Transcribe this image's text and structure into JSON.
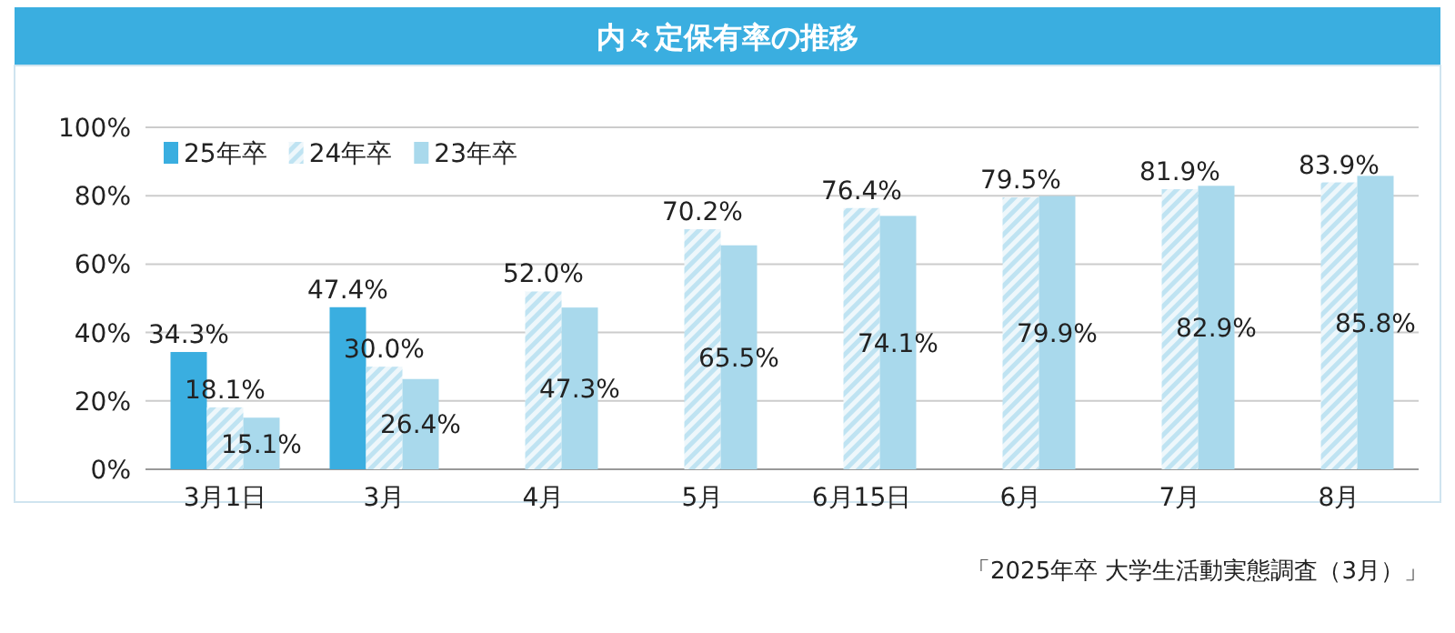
{
  "chart_data": {
    "type": "bar",
    "title": "内々定保有率の推移",
    "categories": [
      "3月1日",
      "3月",
      "4月",
      "5月",
      "6月15日",
      "6月",
      "7月",
      "8月"
    ],
    "series": [
      {
        "name": "25年卒",
        "color": "#3aaee0",
        "values": [
          34.3,
          47.4,
          null,
          null,
          null,
          null,
          null,
          null
        ],
        "value_labels": [
          "34.3%",
          "47.4%",
          null,
          null,
          null,
          null,
          null,
          null
        ]
      },
      {
        "name": "24年卒",
        "color": "#bfe3f2",
        "values": [
          18.1,
          30.0,
          52.0,
          70.2,
          76.4,
          79.5,
          81.9,
          83.9
        ],
        "value_labels": [
          "18.1%",
          "30.0%",
          "52.0%",
          "70.2%",
          "76.4%",
          "79.5%",
          "81.9%",
          "83.9%"
        ]
      },
      {
        "name": "23年卒",
        "color": "#a9d9ec",
        "values": [
          15.1,
          26.4,
          47.3,
          65.5,
          74.1,
          79.9,
          82.9,
          85.8
        ],
        "value_labels": [
          "15.1%",
          "26.4%",
          "47.3%",
          "65.5%",
          "74.1%",
          "79.9%",
          "82.9%",
          "85.8%"
        ]
      }
    ],
    "ylim": [
      0,
      100
    ],
    "yticks": [
      {
        "value": 0,
        "label": "0%"
      },
      {
        "value": 20,
        "label": "20%"
      },
      {
        "value": 40,
        "label": "40%"
      },
      {
        "value": 60,
        "label": "60%"
      },
      {
        "value": 80,
        "label": "80%"
      },
      {
        "value": 100,
        "label": "100%"
      }
    ],
    "grid": "y",
    "legend": "top left",
    "annotations": [
      "「2025年卒 大学生活動実態調査（3月）」"
    ]
  }
}
